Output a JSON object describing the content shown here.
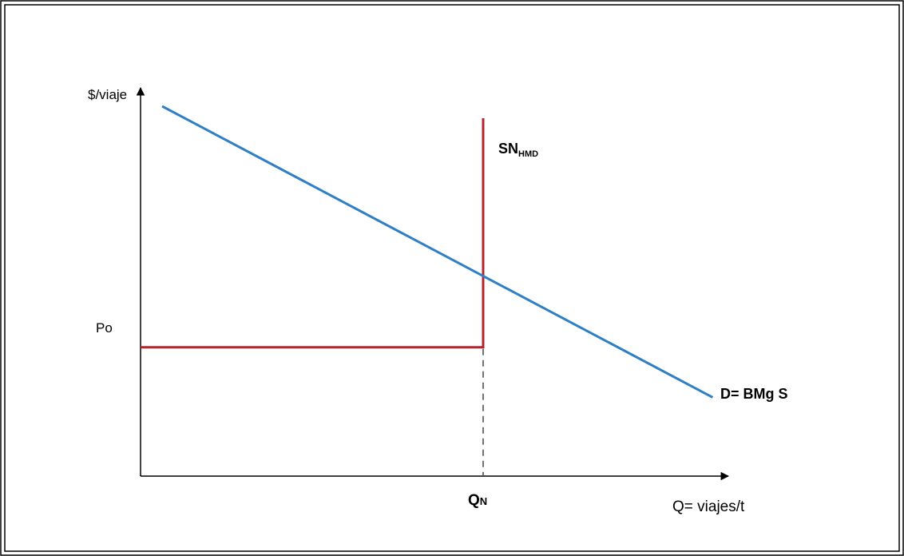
{
  "chart_data": {
    "type": "line",
    "title": "",
    "ylabel": "$/viaje",
    "xlabel": "Q= viajes/t",
    "y_tick_label": "Po",
    "x_tick_label_main": "Q",
    "x_tick_label_sub": "N",
    "colors": {
      "demand": "#2e7fc6",
      "supply": "#b5242a",
      "axes": "#000000",
      "frame": "#000000",
      "guide": "#444444"
    },
    "series": [
      {
        "name_main": "SN",
        "name_sub": "HMD",
        "kind": "supply",
        "x": [
          0,
          1,
          1,
          1
        ],
        "y": [
          0.36,
          0.36,
          0.43,
          1.0
        ]
      },
      {
        "name_main": "D= BMg S",
        "name_sub": "",
        "kind": "demand",
        "x": [
          0.0,
          1.0,
          1.67
        ],
        "y": [
          1.0,
          0.55,
          0.22
        ]
      }
    ],
    "equilibrium": {
      "x": 1.0,
      "y": 0.55
    },
    "guide_lines": [
      {
        "from": [
          1.0,
          0.36
        ],
        "to": [
          1.0,
          0.0
        ],
        "style": "dashed"
      }
    ]
  }
}
